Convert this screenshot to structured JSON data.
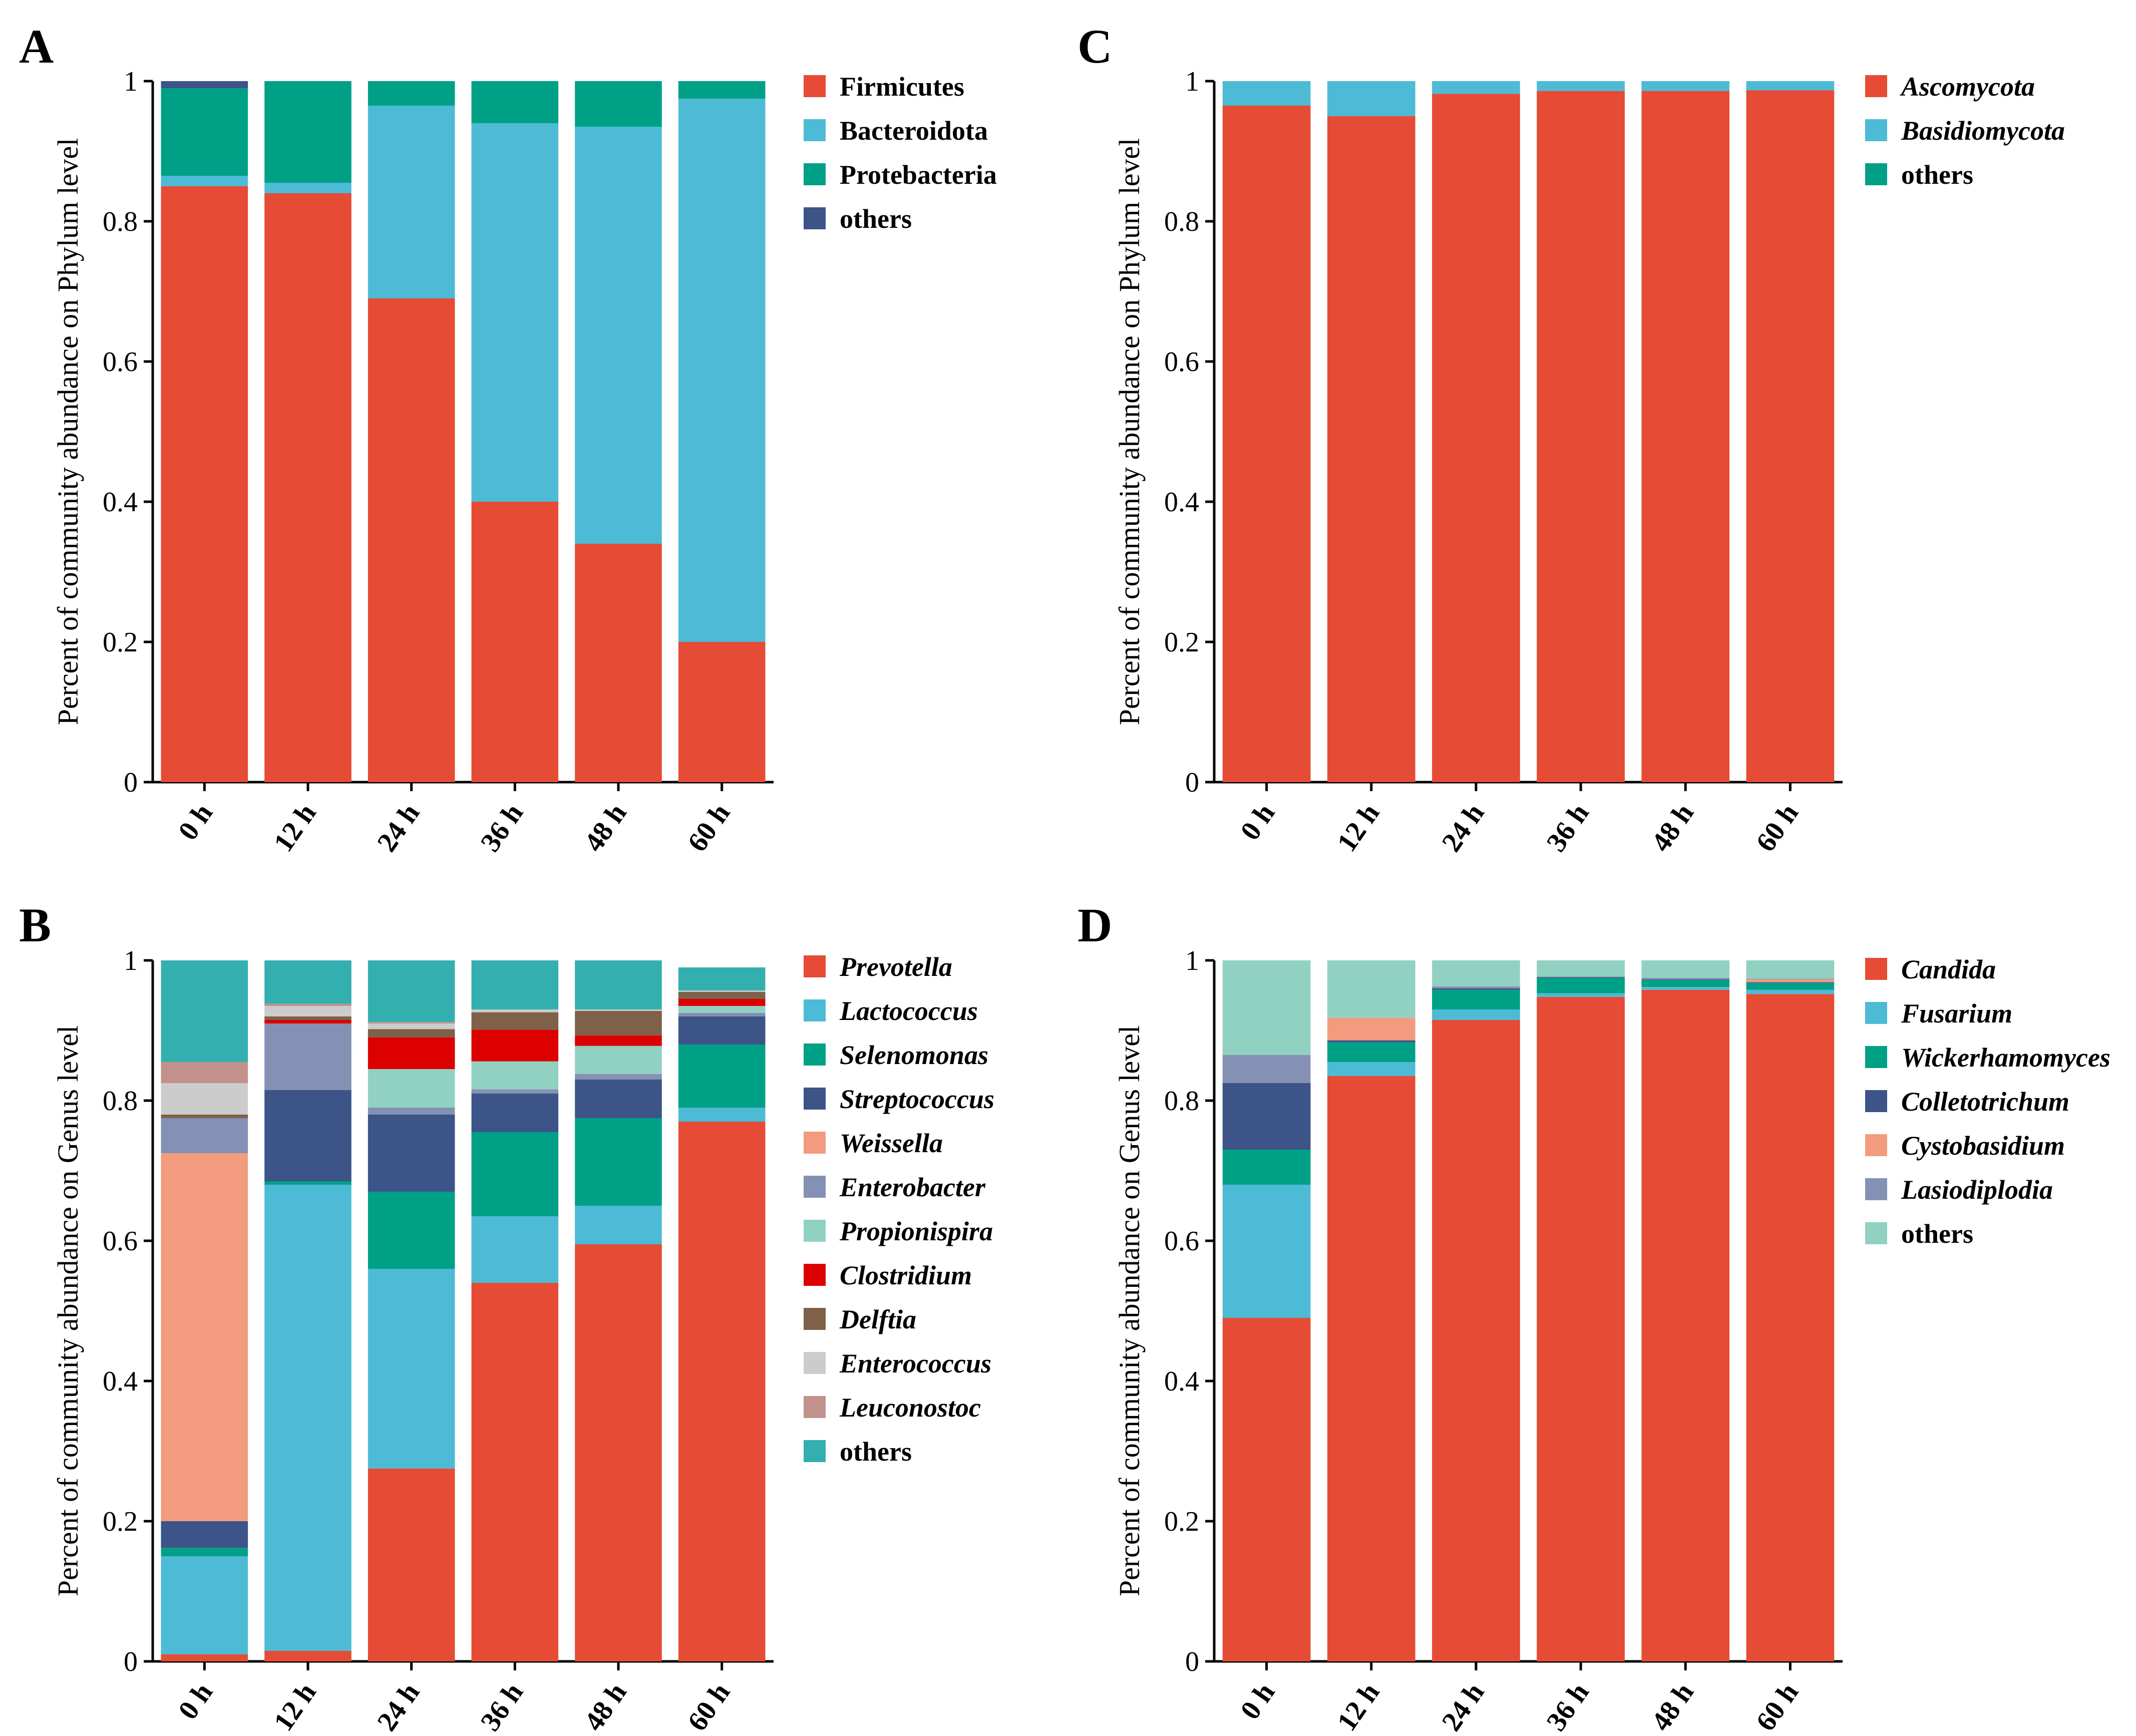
{
  "figure": "Community abundance stacked bar charts",
  "colors": {
    "axis": "#000000",
    "palette": [
      "#E64B35",
      "#4DBBD5",
      "#00A087",
      "#3C5488",
      "#F39B7F",
      "#8491B4",
      "#91D1C2",
      "#DC0000",
      "#7E6148",
      "#CCCCCC",
      "#C2918B",
      "#34AFAF"
    ]
  },
  "chart_data": [
    {
      "panel": "A",
      "type": "bar",
      "stacked": true,
      "ylabel": "Percent of community abundance on Phylum level",
      "ylim": [
        0,
        1
      ],
      "yticks": [
        "0",
        "0.2",
        "0.4",
        "0.6",
        "0.8",
        "1"
      ],
      "categories": [
        "0 h",
        "12 h",
        "24 h",
        "36 h",
        "48 h",
        "60 h"
      ],
      "legend_italic": false,
      "series": [
        {
          "name": "Firmicutes",
          "color": "#E64B35",
          "values": [
            0.85,
            0.84,
            0.69,
            0.4,
            0.34,
            0.2
          ]
        },
        {
          "name": "Bacteroidota",
          "color": "#4DBBD5",
          "values": [
            0.015,
            0.015,
            0.275,
            0.54,
            0.595,
            0.775
          ]
        },
        {
          "name": "Protebacteria",
          "color": "#00A087",
          "values": [
            0.125,
            0.145,
            0.035,
            0.06,
            0.065,
            0.025
          ]
        },
        {
          "name": "others",
          "color": "#3C5488",
          "values": [
            0.01,
            0.0,
            0.0,
            0.0,
            0.0,
            0.0
          ]
        }
      ]
    },
    {
      "panel": "B",
      "type": "bar",
      "stacked": true,
      "ylabel": "Percent of community abundance on Genus level",
      "ylim": [
        0,
        1
      ],
      "yticks": [
        "0",
        "0.2",
        "0.4",
        "0.6",
        "0.8",
        "1"
      ],
      "categories": [
        "0 h",
        "12 h",
        "24 h",
        "36 h",
        "48 h",
        "60 h"
      ],
      "legend_italic": true,
      "series": [
        {
          "name": "Prevotella",
          "color": "#E64B35",
          "values": [
            0.01,
            0.015,
            0.275,
            0.54,
            0.595,
            0.77
          ]
        },
        {
          "name": "Lactococcus",
          "color": "#4DBBD5",
          "values": [
            0.14,
            0.665,
            0.285,
            0.095,
            0.055,
            0.02
          ]
        },
        {
          "name": "Selenomonas",
          "color": "#00A087",
          "values": [
            0.012,
            0.005,
            0.11,
            0.12,
            0.125,
            0.09
          ]
        },
        {
          "name": "Streptococcus",
          "color": "#3C5488",
          "values": [
            0.038,
            0.13,
            0.11,
            0.055,
            0.055,
            0.04
          ]
        },
        {
          "name": "Weissella",
          "color": "#F39B7F",
          "values": [
            0.525,
            0.0,
            0.0,
            0.0,
            0.0,
            0.0
          ]
        },
        {
          "name": "Enterobacter",
          "color": "#8491B4",
          "values": [
            0.05,
            0.095,
            0.01,
            0.006,
            0.008,
            0.005
          ]
        },
        {
          "name": "Propionispira",
          "color": "#91D1C2",
          "values": [
            0.0,
            0.0,
            0.055,
            0.04,
            0.04,
            0.01
          ]
        },
        {
          "name": "Clostridium",
          "color": "#DC0000",
          "values": [
            0.0,
            0.005,
            0.045,
            0.045,
            0.015,
            0.01
          ]
        },
        {
          "name": "Delftia",
          "color": "#7E6148",
          "values": [
            0.005,
            0.005,
            0.012,
            0.025,
            0.035,
            0.01
          ]
        },
        {
          "name": "Enterococcus",
          "color": "#CCCCCC",
          "values": [
            0.045,
            0.015,
            0.008,
            0.004,
            0.002,
            0.002
          ]
        },
        {
          "name": "Leuconostoc",
          "color": "#C2918B",
          "values": [
            0.03,
            0.003,
            0.002,
            0.0,
            0.0,
            0.0
          ]
        },
        {
          "name": "others",
          "color": "#34AFAF",
          "values": [
            0.145,
            0.062,
            0.088,
            0.07,
            0.07,
            0.033
          ]
        }
      ]
    },
    {
      "panel": "C",
      "type": "bar",
      "stacked": true,
      "ylabel": "Percent of community abundance on Phylum level",
      "ylim": [
        0,
        1
      ],
      "yticks": [
        "0",
        "0.2",
        "0.4",
        "0.6",
        "0.8",
        "1"
      ],
      "categories": [
        "0 h",
        "12 h",
        "24 h",
        "36 h",
        "48 h",
        "60 h"
      ],
      "legend_italic": true,
      "series": [
        {
          "name": "Ascomycota",
          "color": "#E64B35",
          "values": [
            0.965,
            0.95,
            0.982,
            0.986,
            0.986,
            0.987
          ]
        },
        {
          "name": "Basidiomycota",
          "color": "#4DBBD5",
          "values": [
            0.035,
            0.05,
            0.018,
            0.014,
            0.014,
            0.013
          ]
        },
        {
          "name": "others",
          "color": "#00A087",
          "values": [
            0.0,
            0.0,
            0.0,
            0.0,
            0.0,
            0.0
          ]
        }
      ]
    },
    {
      "panel": "D",
      "type": "bar",
      "stacked": true,
      "ylabel": "Percent of community abundance on Genus level",
      "ylim": [
        0,
        1
      ],
      "yticks": [
        "0",
        "0.2",
        "0.4",
        "0.6",
        "0.8",
        "1"
      ],
      "categories": [
        "0 h",
        "12 h",
        "24 h",
        "36 h",
        "48 h",
        "60 h"
      ],
      "legend_italic": true,
      "italic_exceptions": [
        "others"
      ],
      "series": [
        {
          "name": "Candida",
          "color": "#E64B35",
          "values": [
            0.49,
            0.835,
            0.915,
            0.948,
            0.958,
            0.952
          ]
        },
        {
          "name": "Fusarium",
          "color": "#4DBBD5",
          "values": [
            0.19,
            0.02,
            0.015,
            0.005,
            0.004,
            0.006
          ]
        },
        {
          "name": "Wickerhamomyces",
          "color": "#00A087",
          "values": [
            0.05,
            0.028,
            0.028,
            0.022,
            0.01,
            0.01
          ]
        },
        {
          "name": "Colletotrichum",
          "color": "#3C5488",
          "values": [
            0.095,
            0.003,
            0.002,
            0.001,
            0.001,
            0.001
          ]
        },
        {
          "name": "Cystobasidium",
          "color": "#F39B7F",
          "values": [
            0.0,
            0.032,
            0.0,
            0.0,
            0.0,
            0.004
          ]
        },
        {
          "name": "Lasiodiplodia",
          "color": "#8491B4",
          "values": [
            0.04,
            0.0,
            0.003,
            0.001,
            0.002,
            0.001
          ]
        },
        {
          "name": "others",
          "color": "#91D1C2",
          "values": [
            0.135,
            0.082,
            0.037,
            0.023,
            0.025,
            0.026
          ]
        }
      ]
    }
  ]
}
